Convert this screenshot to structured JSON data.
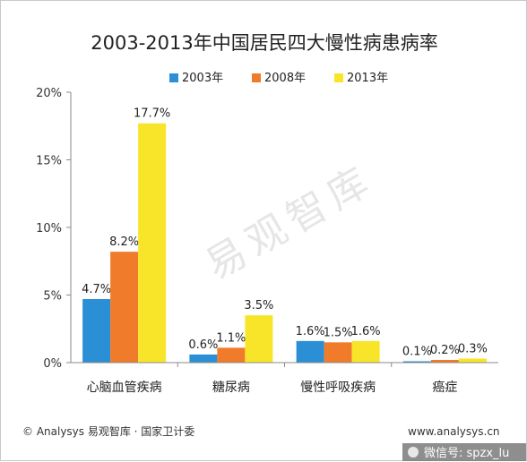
{
  "chart_data": {
    "type": "bar",
    "title": "2003-2013年中国居民四大慢性病患病率",
    "categories": [
      "心脑血管疾病",
      "糖尿病",
      "慢性呼吸疾病",
      "癌症"
    ],
    "series": [
      {
        "name": "2003年",
        "color": "#2b8fd6",
        "values": [
          4.7,
          0.6,
          1.6,
          0.1
        ],
        "labels": [
          "4.7%",
          "0.6%",
          "1.6%",
          "0.1%"
        ]
      },
      {
        "name": "2008年",
        "color": "#f07b2a",
        "values": [
          8.2,
          1.1,
          1.5,
          0.2
        ],
        "labels": [
          "8.2%",
          "1.1%",
          "1.5%",
          "0.2%"
        ]
      },
      {
        "name": "2013年",
        "color": "#f8e52a",
        "values": [
          17.7,
          3.5,
          1.6,
          0.3
        ],
        "labels": [
          "17.7%",
          "3.5%",
          "1.6%",
          "0.3%"
        ]
      }
    ],
    "ylim": [
      0,
      20
    ],
    "yticks": [
      0,
      5,
      10,
      15,
      20
    ],
    "ytick_labels": [
      "0%",
      "5%",
      "10%",
      "15%",
      "20%"
    ],
    "legend_position": "top",
    "grid": false,
    "xlabel": "",
    "ylabel": ""
  },
  "watermark": "易观智库",
  "footer": {
    "source": "© Analysys 易观智库 · 国家卫计委",
    "url": "www.analysys.cn",
    "wechat": "微信号: spzx_lu"
  }
}
